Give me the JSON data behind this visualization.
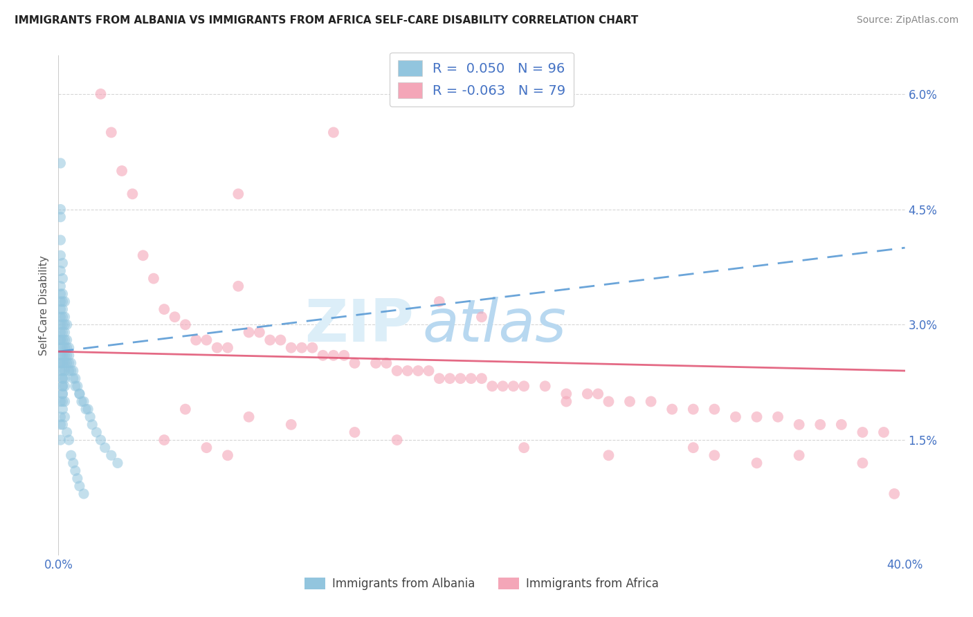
{
  "title": "IMMIGRANTS FROM ALBANIA VS IMMIGRANTS FROM AFRICA SELF-CARE DISABILITY CORRELATION CHART",
  "source": "Source: ZipAtlas.com",
  "ylabel": "Self-Care Disability",
  "xlim": [
    0.0,
    0.4
  ],
  "ylim": [
    0.0,
    0.065
  ],
  "legend_r1": "R =  0.050",
  "legend_n1": "N = 96",
  "legend_r2": "R = -0.063",
  "legend_n2": "N = 79",
  "blue_color": "#92c5de",
  "pink_color": "#f4a6b8",
  "trend_blue_color": "#5b9bd5",
  "trend_pink_color": "#e05070",
  "watermark_color": "#dceef8",
  "albania_x": [
    0.001,
    0.001,
    0.001,
    0.001,
    0.001,
    0.001,
    0.001,
    0.001,
    0.001,
    0.001,
    0.001,
    0.001,
    0.001,
    0.001,
    0.001,
    0.001,
    0.001,
    0.001,
    0.001,
    0.001,
    0.002,
    0.002,
    0.002,
    0.002,
    0.002,
    0.002,
    0.002,
    0.002,
    0.002,
    0.002,
    0.002,
    0.002,
    0.002,
    0.002,
    0.002,
    0.002,
    0.002,
    0.002,
    0.002,
    0.002,
    0.003,
    0.003,
    0.003,
    0.003,
    0.003,
    0.003,
    0.003,
    0.003,
    0.003,
    0.003,
    0.003,
    0.004,
    0.004,
    0.004,
    0.004,
    0.004,
    0.005,
    0.005,
    0.005,
    0.005,
    0.006,
    0.006,
    0.007,
    0.007,
    0.008,
    0.008,
    0.009,
    0.01,
    0.01,
    0.011,
    0.012,
    0.013,
    0.014,
    0.015,
    0.016,
    0.018,
    0.02,
    0.022,
    0.025,
    0.028,
    0.001,
    0.001,
    0.001,
    0.001,
    0.002,
    0.002,
    0.003,
    0.003,
    0.004,
    0.005,
    0.006,
    0.007,
    0.008,
    0.009,
    0.01,
    0.012
  ],
  "albania_y": [
    0.051,
    0.045,
    0.044,
    0.041,
    0.039,
    0.037,
    0.035,
    0.034,
    0.033,
    0.032,
    0.031,
    0.03,
    0.029,
    0.028,
    0.028,
    0.027,
    0.026,
    0.025,
    0.025,
    0.024,
    0.038,
    0.036,
    0.034,
    0.033,
    0.032,
    0.031,
    0.03,
    0.029,
    0.028,
    0.027,
    0.026,
    0.025,
    0.024,
    0.023,
    0.023,
    0.022,
    0.022,
    0.021,
    0.021,
    0.02,
    0.033,
    0.031,
    0.03,
    0.029,
    0.028,
    0.027,
    0.026,
    0.025,
    0.024,
    0.023,
    0.022,
    0.03,
    0.028,
    0.027,
    0.026,
    0.025,
    0.027,
    0.026,
    0.025,
    0.024,
    0.025,
    0.024,
    0.024,
    0.023,
    0.023,
    0.022,
    0.022,
    0.021,
    0.021,
    0.02,
    0.02,
    0.019,
    0.019,
    0.018,
    0.017,
    0.016,
    0.015,
    0.014,
    0.013,
    0.012,
    0.02,
    0.018,
    0.017,
    0.015,
    0.019,
    0.017,
    0.02,
    0.018,
    0.016,
    0.015,
    0.013,
    0.012,
    0.011,
    0.01,
    0.009,
    0.008
  ],
  "africa_x": [
    0.02,
    0.025,
    0.03,
    0.035,
    0.04,
    0.045,
    0.05,
    0.055,
    0.06,
    0.065,
    0.07,
    0.075,
    0.08,
    0.085,
    0.09,
    0.095,
    0.1,
    0.105,
    0.11,
    0.115,
    0.12,
    0.125,
    0.13,
    0.135,
    0.14,
    0.15,
    0.155,
    0.16,
    0.165,
    0.17,
    0.175,
    0.18,
    0.185,
    0.19,
    0.195,
    0.2,
    0.205,
    0.21,
    0.215,
    0.22,
    0.23,
    0.24,
    0.25,
    0.255,
    0.26,
    0.27,
    0.28,
    0.29,
    0.3,
    0.31,
    0.32,
    0.33,
    0.34,
    0.35,
    0.36,
    0.37,
    0.38,
    0.39,
    0.395,
    0.085,
    0.13,
    0.18,
    0.2,
    0.24,
    0.3,
    0.35,
    0.38,
    0.06,
    0.09,
    0.11,
    0.14,
    0.16,
    0.22,
    0.26,
    0.31,
    0.33,
    0.05,
    0.07,
    0.08
  ],
  "africa_y": [
    0.06,
    0.055,
    0.05,
    0.047,
    0.039,
    0.036,
    0.032,
    0.031,
    0.03,
    0.028,
    0.028,
    0.027,
    0.027,
    0.035,
    0.029,
    0.029,
    0.028,
    0.028,
    0.027,
    0.027,
    0.027,
    0.026,
    0.026,
    0.026,
    0.025,
    0.025,
    0.025,
    0.024,
    0.024,
    0.024,
    0.024,
    0.023,
    0.023,
    0.023,
    0.023,
    0.023,
    0.022,
    0.022,
    0.022,
    0.022,
    0.022,
    0.021,
    0.021,
    0.021,
    0.02,
    0.02,
    0.02,
    0.019,
    0.019,
    0.019,
    0.018,
    0.018,
    0.018,
    0.017,
    0.017,
    0.017,
    0.016,
    0.016,
    0.008,
    0.047,
    0.055,
    0.033,
    0.031,
    0.02,
    0.014,
    0.013,
    0.012,
    0.019,
    0.018,
    0.017,
    0.016,
    0.015,
    0.014,
    0.013,
    0.013,
    0.012,
    0.015,
    0.014,
    0.013
  ]
}
